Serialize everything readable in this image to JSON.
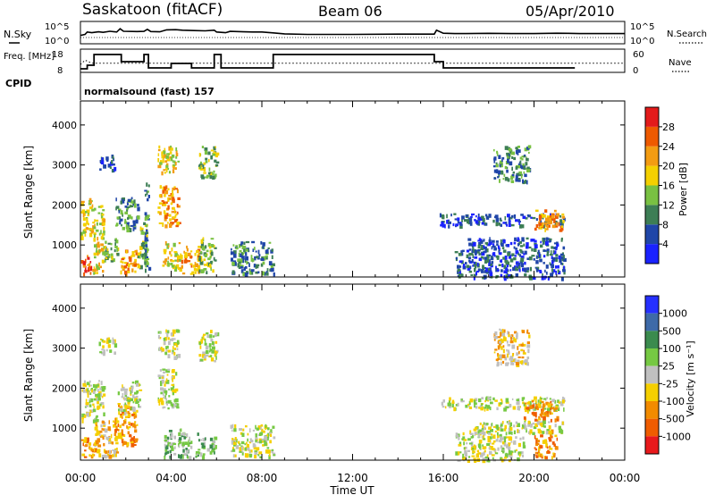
{
  "header": {
    "title": "Saskatoon (fitACF)",
    "beam": "Beam 06",
    "date": "05/Apr/2010",
    "mode_label": "normalsound (fast) 157"
  },
  "chart_data": [
    {
      "type": "line",
      "panel": "noise",
      "left_label": "N.Sky",
      "right_label": "N.Search",
      "left_ticks": [
        "10^5",
        "10^0"
      ],
      "right_ticks": [
        "10^5",
        "10^0"
      ],
      "yscale": "log",
      "xlim": [
        0,
        24
      ],
      "series": [
        {
          "name": "N.Sky",
          "style": "solid",
          "x": [
            0,
            0.2,
            0.3,
            0.5,
            0.8,
            1.0,
            1.3,
            1.6,
            1.75,
            1.9,
            2.5,
            2.8,
            2.95,
            3.1,
            3.5,
            3.8,
            4.2,
            4.5,
            5.0,
            5.5,
            5.9,
            6.0,
            6.2,
            6.4,
            6.6,
            7.2,
            7.6,
            8.0,
            8.5,
            9.0,
            10,
            12,
            14,
            15.6,
            15.7,
            16.0,
            16.5,
            17,
            18,
            19,
            20,
            21,
            21.5,
            22,
            23,
            24
          ],
          "y": [
            40,
            80,
            500,
            300,
            600,
            400,
            900,
            500,
            6000,
            900,
            700,
            800,
            4000,
            700,
            600,
            2500,
            3000,
            2000,
            1500,
            1200,
            2000,
            500,
            400,
            300,
            800,
            600,
            500,
            500,
            250,
            120,
            80,
            80,
            100,
            100,
            2000,
            200,
            150,
            150,
            180,
            150,
            150,
            200,
            180,
            150,
            150,
            150
          ]
        }
      ]
    },
    {
      "type": "line",
      "panel": "frequency",
      "left_label": "Freq. [MHz]",
      "right_label": "Nave",
      "left_ticks": [
        18,
        8
      ],
      "right_ticks": [
        60,
        0
      ],
      "ylim_left": [
        8,
        18
      ],
      "ylim_right": [
        0,
        60
      ],
      "xlim": [
        0,
        24
      ],
      "series": [
        {
          "name": "Freq.",
          "style": "solid",
          "x": [
            0,
            0.3,
            0.3,
            0.6,
            0.6,
            1.8,
            1.8,
            2.8,
            2.8,
            3.0,
            3.0,
            4.0,
            4.0,
            4.9,
            4.9,
            5.9,
            5.9,
            6.2,
            6.2,
            8.5,
            8.5,
            15.6,
            15.6,
            16.0,
            16.0,
            21.8
          ],
          "y": [
            9,
            9,
            11,
            11,
            17,
            17,
            13,
            13,
            17,
            17,
            9.5,
            9.5,
            12,
            12,
            9.5,
            9.5,
            17,
            17,
            9.5,
            9.5,
            17,
            17,
            13,
            13,
            9.5,
            9.5
          ]
        },
        {
          "name": "Nave",
          "style": "dotted",
          "x": [
            0,
            0.2,
            0.5,
            24
          ],
          "y": [
            20,
            35,
            25,
            25
          ]
        }
      ]
    },
    {
      "type": "heatmap",
      "panel": "cpid",
      "label": "CPID",
      "xlim": [
        0,
        24
      ]
    },
    {
      "type": "heatmap",
      "panel": "power",
      "ylabel": "Slant Range [km]",
      "yticks": [
        1000,
        2000,
        3000,
        4000
      ],
      "ylim": [
        200,
        4600
      ],
      "xlim": [
        0,
        24
      ],
      "colorbar": {
        "label": "Power [dB]",
        "ticks": [
          "4",
          "8",
          "12",
          "16",
          "20",
          "24",
          "28"
        ],
        "colors": [
          "#1a22ff",
          "#2046a8",
          "#3d7e55",
          "#79c142",
          "#f4d000",
          "#f39c12",
          "#ee5a00",
          "#e31b1b"
        ]
      },
      "blobs": [
        {
          "x": [
            0.0,
            0.5
          ],
          "r": [
            300,
            800
          ],
          "level": 6
        },
        {
          "x": [
            0.0,
            0.5
          ],
          "r": [
            1200,
            2200
          ],
          "level": 4
        },
        {
          "x": [
            0.5,
            1.0
          ],
          "r": [
            300,
            2000
          ],
          "level": 4
        },
        {
          "x": [
            0.8,
            1.5
          ],
          "r": [
            2900,
            3300
          ],
          "level": 1
        },
        {
          "x": [
            1.0,
            1.7
          ],
          "r": [
            600,
            1200
          ],
          "level": 3
        },
        {
          "x": [
            1.7,
            2.5
          ],
          "r": [
            300,
            900
          ],
          "level": 5
        },
        {
          "x": [
            1.5,
            2.5
          ],
          "r": [
            1400,
            2200
          ],
          "level": 2
        },
        {
          "x": [
            2.5,
            2.9
          ],
          "r": [
            400,
            1600
          ],
          "level": 3
        },
        {
          "x": [
            2.8,
            3.0
          ],
          "r": [
            300,
            2600
          ],
          "level": 2
        },
        {
          "x": [
            3.4,
            4.3
          ],
          "r": [
            1500,
            2500
          ],
          "level": 5
        },
        {
          "x": [
            3.4,
            4.3
          ],
          "r": [
            2800,
            3500
          ],
          "level": 4
        },
        {
          "x": [
            3.6,
            4.4
          ],
          "r": [
            400,
            1100
          ],
          "level": 4
        },
        {
          "x": [
            4.4,
            5.2
          ],
          "r": [
            300,
            1000
          ],
          "level": 5
        },
        {
          "x": [
            5.2,
            5.9
          ],
          "r": [
            300,
            1200
          ],
          "level": 3
        },
        {
          "x": [
            5.2,
            6.0
          ],
          "r": [
            2700,
            3500
          ],
          "level": 3
        },
        {
          "x": [
            6.6,
            8.5
          ],
          "r": [
            300,
            1100
          ],
          "level": 2
        },
        {
          "x": [
            15.8,
            21.3
          ],
          "r": [
            1500,
            1800
          ],
          "level": 1
        },
        {
          "x": [
            17.0,
            21.3
          ],
          "r": [
            900,
            1200
          ],
          "level": 1
        },
        {
          "x": [
            20.0,
            21.3
          ],
          "r": [
            1400,
            1900
          ],
          "level": 5
        },
        {
          "x": [
            16.5,
            21.3
          ],
          "r": [
            200,
            900
          ],
          "level": 1
        },
        {
          "x": [
            18.2,
            19.8
          ],
          "r": [
            2600,
            3500
          ],
          "level": 2
        }
      ]
    },
    {
      "type": "heatmap",
      "panel": "velocity",
      "ylabel": "Slant Range [km]",
      "yticks": [
        1000,
        2000,
        3000,
        4000
      ],
      "ylim": [
        200,
        4600
      ],
      "xlim": [
        0,
        24
      ],
      "xticks": [
        "00:00",
        "04:00",
        "08:00",
        "12:00",
        "16:00",
        "20:00",
        "00:00"
      ],
      "xlabel": "Time UT",
      "colorbar": {
        "label": "Velocity [m s⁻¹]",
        "ticks": [
          "1000",
          "500",
          "100",
          "25",
          "-25",
          "-100",
          "-500",
          "-1000"
        ],
        "colors": [
          "#2630ff",
          "#3e6aa8",
          "#3b8b4e",
          "#76c943",
          "#c0c0c0",
          "#f5cf00",
          "#f28b00",
          "#ef5c00",
          "#e8191c"
        ]
      },
      "blobs": [
        {
          "x": [
            0.0,
            0.6
          ],
          "r": [
            300,
            800
          ],
          "level": 6
        },
        {
          "x": [
            0.0,
            0.5
          ],
          "r": [
            1200,
            2200
          ],
          "level": 4
        },
        {
          "x": [
            0.5,
            1.0
          ],
          "r": [
            1200,
            2300
          ],
          "level": 4
        },
        {
          "x": [
            0.6,
            1.6
          ],
          "r": [
            300,
            1200
          ],
          "level": 5
        },
        {
          "x": [
            1.5,
            2.5
          ],
          "r": [
            600,
            1600
          ],
          "level": 6
        },
        {
          "x": [
            0.8,
            1.5
          ],
          "r": [
            2900,
            3300
          ],
          "level": 4
        },
        {
          "x": [
            1.6,
            2.6
          ],
          "r": [
            1400,
            2200
          ],
          "level": 4
        },
        {
          "x": [
            3.4,
            4.3
          ],
          "r": [
            1500,
            2500
          ],
          "level": 4
        },
        {
          "x": [
            3.4,
            4.3
          ],
          "r": [
            2800,
            3500
          ],
          "level": 4
        },
        {
          "x": [
            3.6,
            4.4
          ],
          "r": [
            300,
            1000
          ],
          "level": 3
        },
        {
          "x": [
            4.4,
            5.2
          ],
          "r": [
            300,
            900
          ],
          "level": 3
        },
        {
          "x": [
            5.2,
            5.9
          ],
          "r": [
            300,
            800
          ],
          "level": 3
        },
        {
          "x": [
            5.2,
            6.0
          ],
          "r": [
            2700,
            3500
          ],
          "level": 4
        },
        {
          "x": [
            6.6,
            8.5
          ],
          "r": [
            300,
            1100
          ],
          "level": 4
        },
        {
          "x": [
            15.8,
            21.3
          ],
          "r": [
            1500,
            1800
          ],
          "level": 4
        },
        {
          "x": [
            17.0,
            21.3
          ],
          "r": [
            900,
            1200
          ],
          "level": 4
        },
        {
          "x": [
            19.5,
            21.0
          ],
          "r": [
            1200,
            1700
          ],
          "level": 6
        },
        {
          "x": [
            20.0,
            21.0
          ],
          "r": [
            300,
            1000
          ],
          "level": 6
        },
        {
          "x": [
            16.5,
            19.5
          ],
          "r": [
            200,
            900
          ],
          "level": 4
        },
        {
          "x": [
            18.2,
            19.8
          ],
          "r": [
            2600,
            3500
          ],
          "level": 5
        }
      ]
    }
  ]
}
